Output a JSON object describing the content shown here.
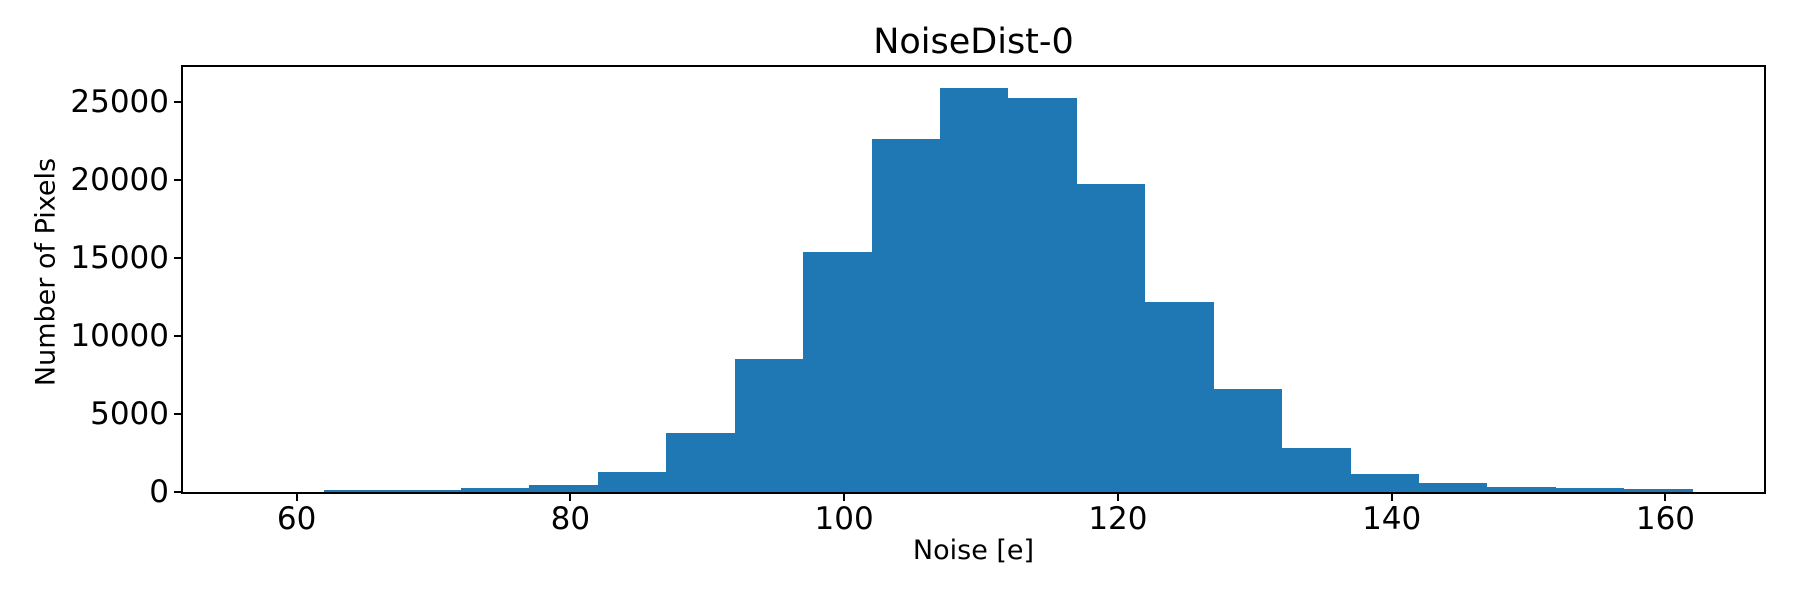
{
  "chart_data": {
    "type": "bar",
    "subtype": "histogram",
    "title": "NoiseDist-0",
    "xlabel": "Noise [e]",
    "ylabel": "Number of Pixels",
    "bar_color": "#1f77b4",
    "axis_color": "#000000",
    "bin_edges": [
      62,
      67,
      72,
      77,
      82,
      87,
      92,
      97,
      102,
      107,
      112,
      117,
      122,
      127,
      132,
      137,
      142,
      147,
      152,
      157,
      162
    ],
    "counts": [
      100,
      130,
      260,
      450,
      1310,
      3800,
      8530,
      15380,
      22630,
      25900,
      25260,
      19740,
      12180,
      6600,
      2820,
      1150,
      580,
      320,
      250,
      200
    ],
    "x_ticks": [
      60,
      80,
      100,
      120,
      140,
      160
    ],
    "y_ticks": [
      0,
      5000,
      10000,
      15000,
      20000,
      25000
    ],
    "xlim": [
      51.7,
      167.2
    ],
    "ylim": [
      0,
      27250
    ],
    "grid": false,
    "legend": null
  }
}
